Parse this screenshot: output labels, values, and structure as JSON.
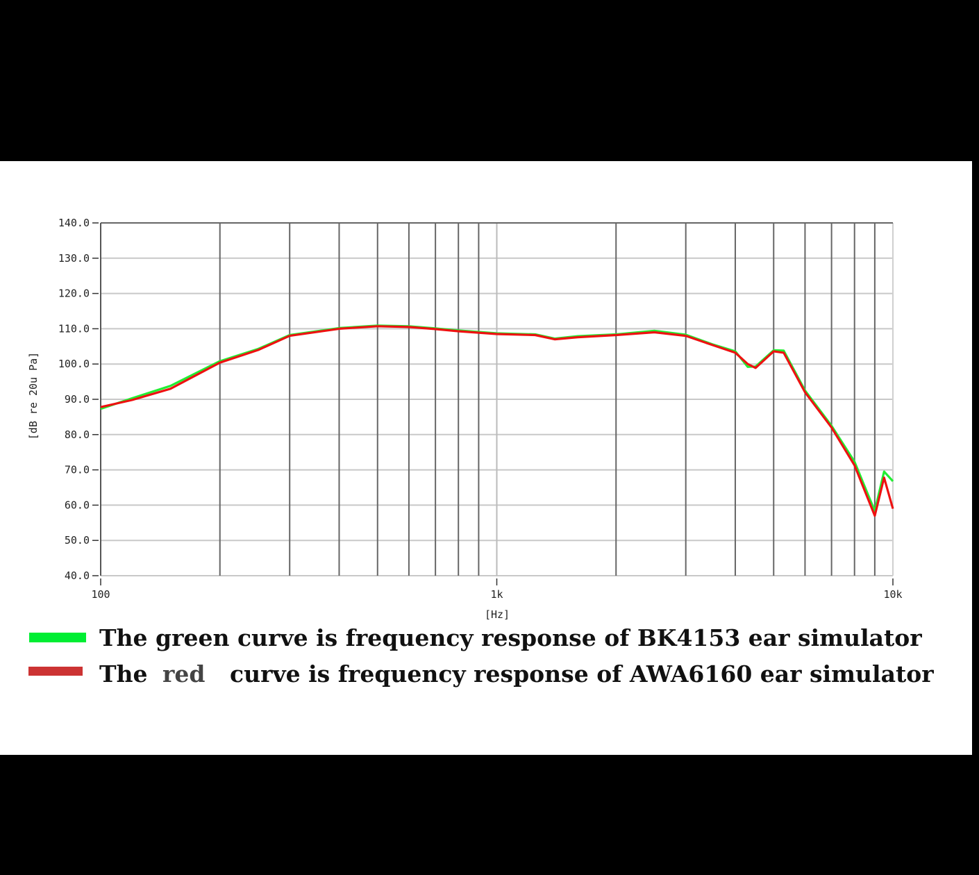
{
  "chart_data": {
    "type": "line",
    "title": "",
    "xlabel": "[Hz]",
    "ylabel": "[dB re 20u Pa]",
    "xscale": "log",
    "xlim": [
      100,
      10000
    ],
    "ylim": [
      40,
      140
    ],
    "grid": true,
    "x_ticks": [
      {
        "value": 100,
        "label": "100"
      },
      {
        "value": 1000,
        "label": "1k"
      },
      {
        "value": 10000,
        "label": "10k"
      }
    ],
    "y_ticks": [
      "140.0",
      "130.0",
      "120.0",
      "110.0",
      "100.0",
      "90.0",
      "80.0",
      "70.0",
      "60.0",
      "50.0",
      "40.0"
    ],
    "x": [
      100,
      120,
      150,
      200,
      250,
      300,
      400,
      500,
      600,
      700,
      800,
      1000,
      1250,
      1400,
      1600,
      2000,
      2500,
      3000,
      3500,
      4000,
      4300,
      4500,
      5000,
      5300,
      6000,
      7000,
      8000,
      9000,
      9500,
      10000
    ],
    "series": [
      {
        "name": "BK4153 ear simulator",
        "color": "#22ee33",
        "values": [
          87.3,
          90.3,
          93.8,
          100.8,
          104.3,
          108.2,
          110.2,
          110.9,
          110.7,
          110.1,
          109.5,
          108.7,
          108.4,
          107.2,
          107.9,
          108.4,
          109.4,
          108.3,
          105.6,
          103.6,
          99.2,
          99.3,
          103.9,
          103.8,
          92.5,
          82.5,
          72.3,
          58.3,
          69.5,
          66.8
        ]
      },
      {
        "name": "AWA6160 ear simulator",
        "color": "#ee1111",
        "values": [
          87.8,
          89.8,
          93.0,
          100.4,
          104.0,
          108.0,
          110.0,
          110.7,
          110.5,
          109.9,
          109.3,
          108.5,
          108.2,
          107.0,
          107.6,
          108.2,
          109.0,
          108.0,
          105.4,
          103.2,
          100.0,
          98.9,
          103.6,
          103.2,
          92.0,
          82.0,
          71.3,
          57.0,
          67.8,
          59.0
        ]
      }
    ],
    "legend": {
      "position": "bottom",
      "entries": [
        {
          "swatch": "#00ee33",
          "prefix": "The green curve is frequency response of BK4153 ear simulator"
        },
        {
          "swatch": "#cc3333",
          "line_parts": [
            "The",
            "red",
            "curve is frequency response of AWA6160 ear simulator"
          ]
        }
      ]
    }
  }
}
